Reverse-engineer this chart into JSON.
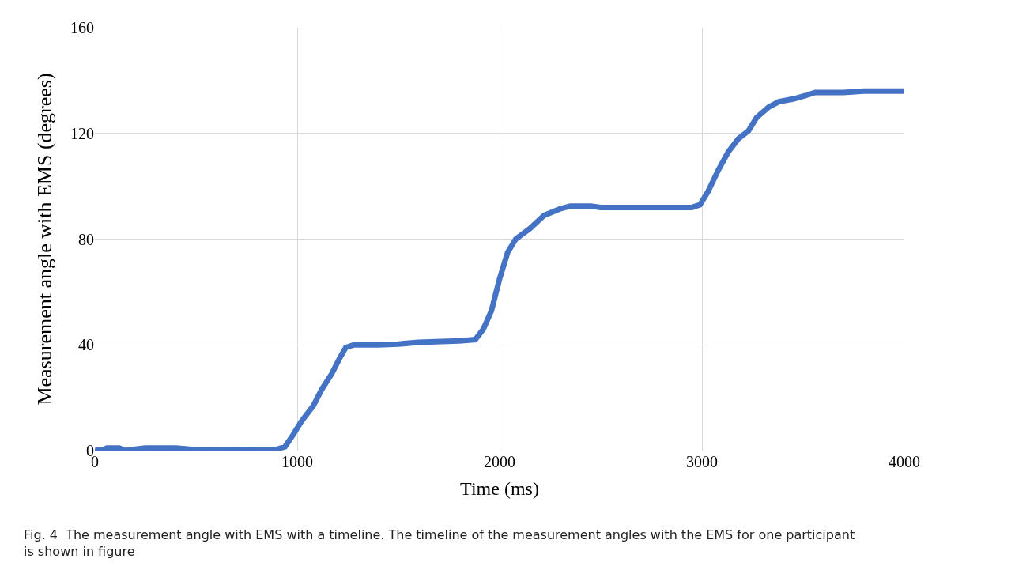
{
  "chart_data": {
    "type": "line",
    "xlabel": "Time (ms)",
    "ylabel": "Measurement angle with EMS (degrees)",
    "x": [
      0,
      30,
      60,
      120,
      150,
      200,
      250,
      400,
      500,
      600,
      900,
      940,
      980,
      1020,
      1080,
      1120,
      1170,
      1210,
      1240,
      1280,
      1400,
      1500,
      1600,
      1800,
      1880,
      1920,
      1960,
      2000,
      2040,
      2080,
      2150,
      2220,
      2300,
      2350,
      2450,
      2500,
      2950,
      2990,
      3030,
      3080,
      3130,
      3180,
      3230,
      3270,
      3330,
      3380,
      3450,
      3520,
      3560,
      3700,
      3800,
      4000
    ],
    "series": [
      {
        "color": "#4472c4",
        "values": [
          0.5,
          0,
          1,
          1,
          0,
          0.5,
          1,
          1,
          0.3,
          0.3,
          0.5,
          1.5,
          6,
          11,
          17,
          23,
          29,
          35,
          39,
          40,
          40,
          40.3,
          41,
          41.5,
          42,
          46,
          53,
          65,
          75,
          80,
          84,
          89,
          91.5,
          92.5,
          92.5,
          92,
          92,
          93,
          98,
          106,
          113,
          118,
          121,
          126,
          130,
          132,
          133,
          134.5,
          135.5,
          135.5,
          136,
          136
        ]
      }
    ],
    "xlim": [
      0,
      4000
    ],
    "xticks": [
      0,
      1000,
      2000,
      3000,
      4000
    ],
    "ylim": [
      0,
      160
    ],
    "yticks": [
      0,
      40,
      80,
      120,
      160
    ],
    "grid": true,
    "legend": false,
    "marker": "none",
    "line_style": "solid",
    "annotations": [
      "Fig. 4  The measurement angle with EMS with a timeline. The timeline of the measurement angles with the EMS for one participant is shown in figure"
    ]
  }
}
